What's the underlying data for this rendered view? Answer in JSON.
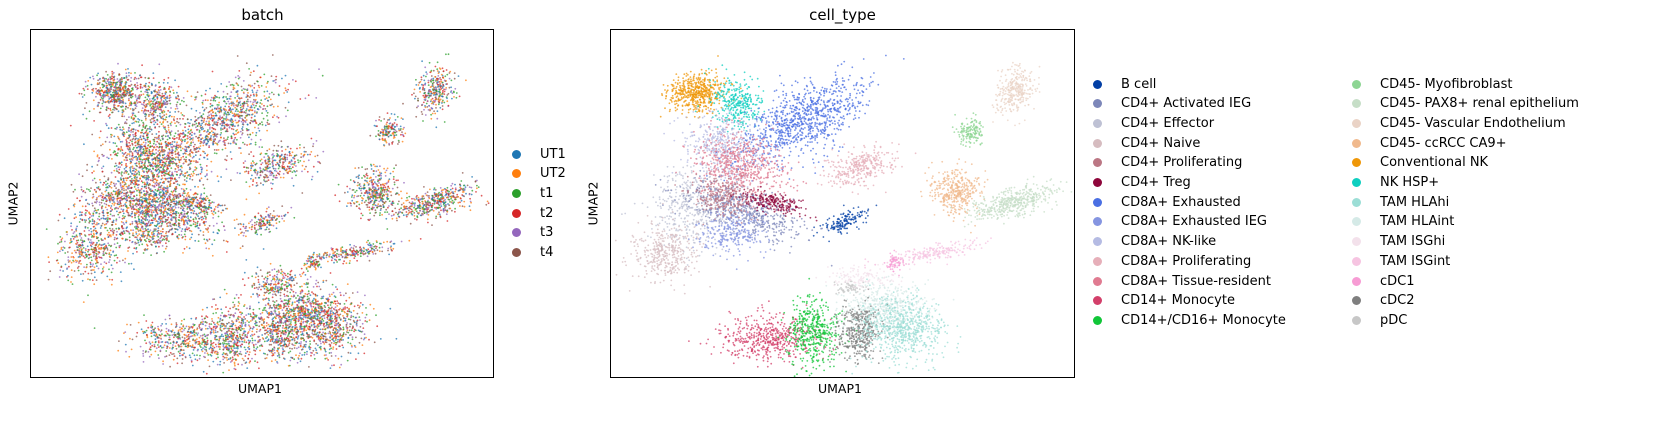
{
  "chart_data": [
    {
      "type": "scatter",
      "title": "batch",
      "xlabel": "UMAP1",
      "ylabel": "UMAP2",
      "grid": false,
      "legend_position": "right",
      "series": [
        {
          "name": "UT1",
          "color": "#1f77b4"
        },
        {
          "name": "UT2",
          "color": "#ff7f0e"
        },
        {
          "name": "t1",
          "color": "#2ca02c"
        },
        {
          "name": "t2",
          "color": "#d62728"
        },
        {
          "name": "t3",
          "color": "#9467bd"
        },
        {
          "name": "t4",
          "color": "#8c564b"
        }
      ]
    },
    {
      "type": "scatter",
      "title": "cell_type",
      "xlabel": "UMAP1",
      "ylabel": "UMAP2",
      "grid": false,
      "legend_position": "right",
      "series": [
        {
          "name": "B cell",
          "color": "#023fa5"
        },
        {
          "name": "CD4+ Activated IEG",
          "color": "#7d87b9"
        },
        {
          "name": "CD4+ Effector",
          "color": "#bec1d4"
        },
        {
          "name": "CD4+ Naive",
          "color": "#d6bcc0"
        },
        {
          "name": "CD4+ Proliferating",
          "color": "#bb7784"
        },
        {
          "name": "CD4+ Treg",
          "color": "#8e063b"
        },
        {
          "name": "CD8A+ Exhausted",
          "color": "#4a6fe3"
        },
        {
          "name": "CD8A+ Exhausted IEG",
          "color": "#8595e1"
        },
        {
          "name": "CD8A+ NK-like",
          "color": "#b5bbe3"
        },
        {
          "name": "CD8A+ Proliferating",
          "color": "#e6afb9"
        },
        {
          "name": "CD8A+ Tissue-resident",
          "color": "#e07b91"
        },
        {
          "name": "CD14+ Monocyte",
          "color": "#d33f6a"
        },
        {
          "name": "CD14+/CD16+ Monocyte",
          "color": "#11c638"
        },
        {
          "name": "CD45- Myofibroblast",
          "color": "#8dd593"
        },
        {
          "name": "CD45- PAX8+ renal epithelium",
          "color": "#c6dec7"
        },
        {
          "name": "CD45- Vascular Endothelium",
          "color": "#ead3c6"
        },
        {
          "name": "CD45- ccRCC CA9+",
          "color": "#f0b98d"
        },
        {
          "name": "Conventional NK",
          "color": "#ef9708"
        },
        {
          "name": "NK HSP+",
          "color": "#0fcfc0"
        },
        {
          "name": "TAM HLAhi",
          "color": "#9cded6"
        },
        {
          "name": "TAM HLAint",
          "color": "#d5eae7"
        },
        {
          "name": "TAM ISGhi",
          "color": "#f3e1eb"
        },
        {
          "name": "TAM ISGint",
          "color": "#f6c4e1"
        },
        {
          "name": "cDC1",
          "color": "#f79cd4"
        },
        {
          "name": "cDC2",
          "color": "#7f7f7f"
        },
        {
          "name": "pDC",
          "color": "#c7c7c7"
        }
      ]
    }
  ]
}
